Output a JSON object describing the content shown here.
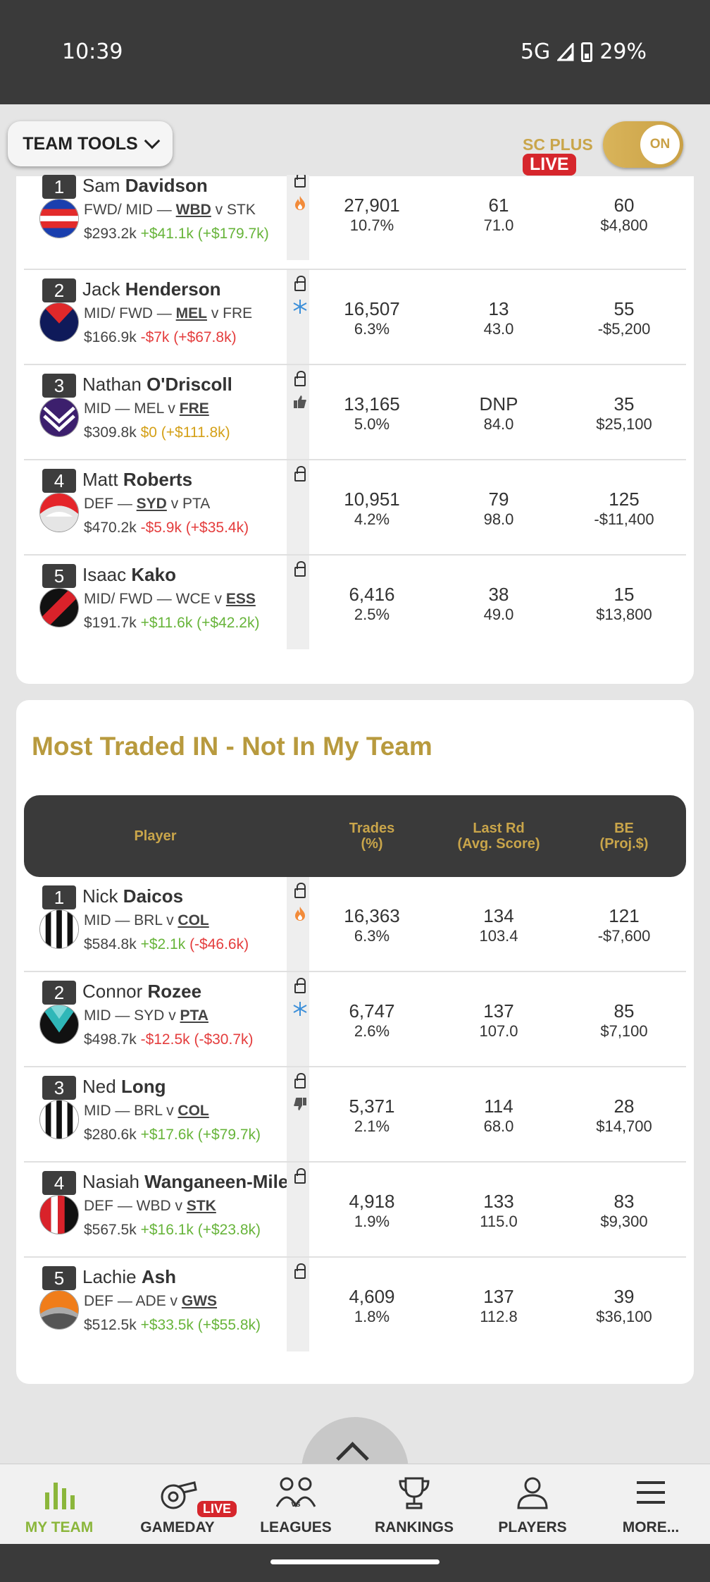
{
  "status_bar": {
    "time": "10:39",
    "network": "5G",
    "battery": "29%"
  },
  "tools": {
    "team_tools_label": "TEAM TOOLS",
    "sc_plus_label": "SC PLUS",
    "live_label": "LIVE",
    "toggle_label": "ON"
  },
  "traded_out": {
    "rows": [
      {
        "rank": "1",
        "first": "Sam",
        "last": "Davidson",
        "pos": "FWD/ MID — ",
        "team": "WBD",
        "vs": " v ",
        "opp": "STK",
        "team_bold": "team",
        "price": "$293.2k",
        "change": "+$41.1k (+$179.7k)",
        "change_color": "g",
        "status": "fire",
        "trades": "27,901",
        "pct": "10.7%",
        "last_rd": "61",
        "avg": "71.0",
        "be": "60",
        "proj": "$4,800",
        "logo": "bulldogs"
      },
      {
        "rank": "2",
        "first": "Jack",
        "last": "Henderson",
        "pos": "MID/ FWD — ",
        "team": "MEL",
        "vs": " v ",
        "opp": "FRE",
        "team_bold": "team",
        "price": "$166.9k",
        "change": "-$7k (+$67.8k)",
        "change_color": "r",
        "status": "ice",
        "trades": "16,507",
        "pct": "6.3%",
        "last_rd": "13",
        "avg": "43.0",
        "be": "55",
        "proj": "-$5,200",
        "logo": "demons"
      },
      {
        "rank": "3",
        "first": "Nathan",
        "last": "O'Driscoll",
        "pos": "MID — ",
        "team": "MEL",
        "vs": " v ",
        "opp": "FRE",
        "team_bold": "opp",
        "price": "$309.8k",
        "change": "$0 (+$111.8k)",
        "change_color": "o",
        "status": "thumbup",
        "trades": "13,165",
        "pct": "5.0%",
        "last_rd": "DNP",
        "avg": "84.0",
        "be": "35",
        "proj": "$25,100",
        "logo": "dockers"
      },
      {
        "rank": "4",
        "first": "Matt",
        "last": "Roberts",
        "pos": "DEF — ",
        "team": "SYD",
        "vs": " v ",
        "opp": "PTA",
        "team_bold": "team",
        "price": "$470.2k",
        "change": "-$5.9k (+$35.4k)",
        "change_color": "r",
        "status": "",
        "trades": "10,951",
        "pct": "4.2%",
        "last_rd": "79",
        "avg": "98.0",
        "be": "125",
        "proj": "-$11,400",
        "logo": "swans"
      },
      {
        "rank": "5",
        "first": "Isaac",
        "last": "Kako",
        "pos": "MID/ FWD — ",
        "team": "WCE",
        "vs": " v ",
        "opp": "ESS",
        "team_bold": "opp",
        "price": "$191.7k",
        "change": "+$11.6k (+$42.2k)",
        "change_color": "g",
        "status": "",
        "trades": "6,416",
        "pct": "2.5%",
        "last_rd": "38",
        "avg": "49.0",
        "be": "15",
        "proj": "$13,800",
        "logo": "bombers"
      }
    ]
  },
  "traded_in": {
    "title": "Most Traded IN - Not In My Team",
    "headers": {
      "player": "Player",
      "trades": "Trades\n(%)",
      "last_rd": "Last Rd\n(Avg. Score)",
      "be": "BE\n(Proj.$)"
    },
    "rows": [
      {
        "rank": "1",
        "first": "Nick",
        "last": "Daicos",
        "pos": "MID — ",
        "team": "BRL",
        "vs": " v ",
        "opp": "COL",
        "team_bold": "opp",
        "price": "$584.8k",
        "change": "+$2.1k (-$46.6k)",
        "change_color": "gr",
        "status": "fire",
        "trades": "16,363",
        "pct": "6.3%",
        "last_rd": "134",
        "avg": "103.4",
        "be": "121",
        "proj": "-$7,600",
        "logo": "magpies"
      },
      {
        "rank": "2",
        "first": "Connor",
        "last": "Rozee",
        "pos": "MID — ",
        "team": "SYD",
        "vs": " v ",
        "opp": "PTA",
        "team_bold": "opp",
        "price": "$498.7k",
        "change": "-$12.5k (-$30.7k)",
        "change_color": "r",
        "status": "ice",
        "trades": "6,747",
        "pct": "2.6%",
        "last_rd": "137",
        "avg": "107.0",
        "be": "85",
        "proj": "$7,100",
        "logo": "power"
      },
      {
        "rank": "3",
        "first": "Ned",
        "last": "Long",
        "pos": "MID — ",
        "team": "BRL",
        "vs": " v ",
        "opp": "COL",
        "team_bold": "opp",
        "price": "$280.6k",
        "change": "+$17.6k (+$79.7k)",
        "change_color": "g",
        "status": "thumbdown",
        "trades": "5,371",
        "pct": "2.1%",
        "last_rd": "114",
        "avg": "68.0",
        "be": "28",
        "proj": "$14,700",
        "logo": "magpies"
      },
      {
        "rank": "4",
        "first": "Nasiah",
        "last": "Wanganeen-Milera",
        "pos": "DEF — ",
        "team": "WBD",
        "vs": " v ",
        "opp": "STK",
        "team_bold": "opp",
        "price": "$567.5k",
        "change": "+$16.1k (+$23.8k)",
        "change_color": "g",
        "status": "",
        "trades": "4,918",
        "pct": "1.9%",
        "last_rd": "133",
        "avg": "115.0",
        "be": "83",
        "proj": "$9,300",
        "logo": "saints"
      },
      {
        "rank": "5",
        "first": "Lachie",
        "last": "Ash",
        "pos": "DEF — ",
        "team": "ADE",
        "vs": " v ",
        "opp": "GWS",
        "team_bold": "opp",
        "price": "$512.5k",
        "change": "+$33.5k (+$55.8k)",
        "change_color": "g",
        "status": "",
        "trades": "4,609",
        "pct": "1.8%",
        "last_rd": "137",
        "avg": "112.8",
        "be": "39",
        "proj": "$36,100",
        "logo": "giants"
      }
    ]
  },
  "nav": {
    "items": [
      {
        "label": "MY TEAM",
        "icon": "bar-chart-icon"
      },
      {
        "label": "GAMEDAY",
        "icon": "whistle-icon"
      },
      {
        "label": "LEAGUES",
        "icon": "versus-icon"
      },
      {
        "label": "RANKINGS",
        "icon": "trophy-icon"
      },
      {
        "label": "PLAYERS",
        "icon": "person-icon"
      },
      {
        "label": "MORE...",
        "icon": "menu-icon"
      }
    ],
    "live_label": "LIVE"
  },
  "colors": {
    "gold": "#c9a54a",
    "dark": "#3a3a3a",
    "green": "#67b43a",
    "red": "#e43d3d",
    "active": "#8bb63b"
  }
}
